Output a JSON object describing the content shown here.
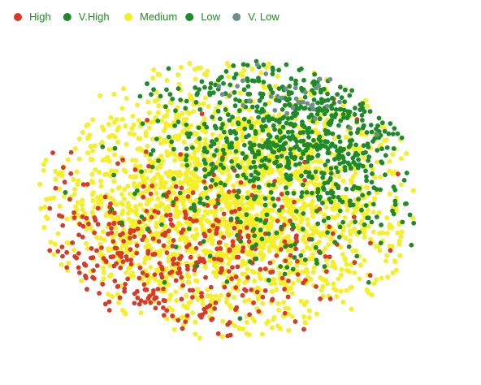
{
  "chart_data": {
    "type": "scatter",
    "title": "",
    "xlabel": "",
    "ylabel": "",
    "grid": false,
    "axes_visible": false,
    "legend_position": "top-left",
    "xlim": [
      0,
      100
    ],
    "ylim": [
      0,
      100
    ],
    "series": [
      {
        "name": "High",
        "color": "#d93a25",
        "generator": {
          "count": 420,
          "center": [
            34,
            32
          ],
          "spread": [
            19,
            14
          ],
          "seed": 11
        }
      },
      {
        "name": "V.High",
        "color": "#1e8a2a",
        "generator": {
          "count": 500,
          "center": [
            63,
            71
          ],
          "spread": [
            16,
            13
          ],
          "seed": 23
        }
      },
      {
        "name": "Medium",
        "color": "#f4ef27",
        "generator": {
          "count": 2100,
          "center": [
            48,
            48
          ],
          "spread": [
            23,
            21
          ],
          "seed": 37
        }
      },
      {
        "name": "Low",
        "color": "#1e8a2a",
        "generator": {
          "count": 260,
          "center": [
            66,
            58
          ],
          "spread": [
            17,
            16
          ],
          "seed": 53
        }
      },
      {
        "name": "V. Low",
        "color": "#6f8f8c",
        "generator": {
          "count": 34,
          "center": [
            62,
            82
          ],
          "spread": [
            10,
            6
          ],
          "seed": 71
        }
      }
    ]
  }
}
